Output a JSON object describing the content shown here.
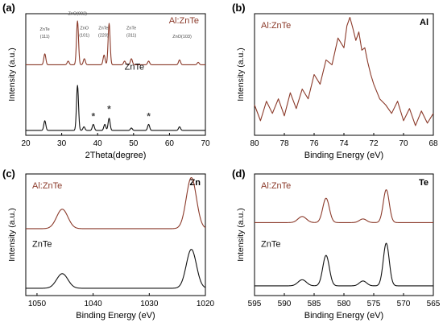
{
  "figure": {
    "background": "#ffffff",
    "series_colors": {
      "alznte": "#8b3a2a",
      "znte": "#111111"
    }
  },
  "chart_data": [
    {
      "id": "a",
      "type": "line",
      "panel_label": "(a)",
      "xlabel": "2Theta(degree)",
      "ylabel": "Intensity (a.u.)",
      "xlim": [
        20,
        70
      ],
      "xticks": [
        "20",
        "30",
        "40",
        "50",
        "60",
        "70"
      ],
      "xtick_values": [
        20,
        30,
        40,
        50,
        60,
        70
      ],
      "series_labels": [
        {
          "text": "Al:ZnTe",
          "series": "alznte"
        },
        {
          "text": "ZnTe",
          "series": "znte"
        }
      ],
      "series": [
        {
          "name": "Al:ZnTe",
          "color": "#8b3a2a",
          "baseline": 0.58,
          "peaks": [
            [
              25.3,
              0.09
            ],
            [
              31.8,
              0.03
            ],
            [
              34.4,
              0.36
            ],
            [
              36.3,
              0.05
            ],
            [
              41.8,
              0.08
            ],
            [
              43.2,
              0.34
            ],
            [
              47.5,
              0.03
            ],
            [
              49.4,
              0.05
            ],
            [
              54.2,
              0.03
            ],
            [
              62.8,
              0.04
            ],
            [
              68.0,
              0.02
            ]
          ]
        },
        {
          "name": "ZnTe",
          "color": "#111111",
          "baseline": 0.04,
          "peaks": [
            [
              25.3,
              0.08
            ],
            [
              34.4,
              0.37
            ],
            [
              36.2,
              0.03
            ],
            [
              38.8,
              0.05
            ],
            [
              42.0,
              0.05
            ],
            [
              43.2,
              0.1
            ],
            [
              49.4,
              0.02
            ],
            [
              54.2,
              0.05
            ],
            [
              62.8,
              0.03
            ]
          ]
        }
      ],
      "annotations": [
        {
          "text": "ZnTe",
          "x": 25.3,
          "y": 0.86
        },
        {
          "text": "(111)",
          "x": 25.3,
          "y": 0.8
        },
        {
          "text": "ZnO(002)",
          "x": 34.4,
          "y": 0.99
        },
        {
          "text": "ZnO",
          "x": 36.3,
          "y": 0.87
        },
        {
          "text": "(101)",
          "x": 36.3,
          "y": 0.81
        },
        {
          "text": "ZnTe",
          "x": 41.6,
          "y": 0.87
        },
        {
          "text": "(220)",
          "x": 41.6,
          "y": 0.81
        },
        {
          "text": "ZnTe",
          "x": 49.4,
          "y": 0.87
        },
        {
          "text": "(311)",
          "x": 49.4,
          "y": 0.81
        },
        {
          "text": "ZnO(103)",
          "x": 63.5,
          "y": 0.8
        },
        {
          "text": "*",
          "x": 38.8,
          "y": 0.13
        },
        {
          "text": "*",
          "x": 43.2,
          "y": 0.19
        },
        {
          "text": "*",
          "x": 54.2,
          "y": 0.13
        }
      ]
    },
    {
      "id": "b",
      "type": "line",
      "panel_label": "(b)",
      "element_label": "Al",
      "xlabel": "Binding Energy (eV)",
      "ylabel": "Intensity (a.u.)",
      "xlim": [
        80,
        68
      ],
      "xticks": [
        "80",
        "78",
        "76",
        "74",
        "72",
        "70",
        "68"
      ],
      "xtick_values": [
        80,
        78,
        76,
        74,
        72,
        70,
        68
      ],
      "series_labels": [
        {
          "text": "Al:ZnTe",
          "series": "alznte"
        }
      ],
      "series": [
        {
          "name": "Al:ZnTe",
          "color": "#8b3a2a",
          "x": [
            80.0,
            79.6,
            79.2,
            78.8,
            78.4,
            78.0,
            77.6,
            77.2,
            76.8,
            76.4,
            76.0,
            75.6,
            75.2,
            74.8,
            74.4,
            74.0,
            73.8,
            73.6,
            73.4,
            73.2,
            73.0,
            72.8,
            72.6,
            72.4,
            72.2,
            72.0,
            71.6,
            71.2,
            70.8,
            70.4,
            70.0,
            69.6,
            69.2,
            68.8,
            68.4,
            68.0
          ],
          "y": [
            0.25,
            0.12,
            0.28,
            0.18,
            0.3,
            0.16,
            0.35,
            0.22,
            0.38,
            0.3,
            0.5,
            0.42,
            0.62,
            0.58,
            0.8,
            0.72,
            0.9,
            0.97,
            0.88,
            0.78,
            0.85,
            0.7,
            0.72,
            0.6,
            0.5,
            0.42,
            0.3,
            0.25,
            0.18,
            0.28,
            0.12,
            0.22,
            0.08,
            0.2,
            0.1,
            0.18
          ]
        }
      ]
    },
    {
      "id": "c",
      "type": "line",
      "panel_label": "(c)",
      "element_label": "Zn",
      "xlabel": "Binding Energy (eV)",
      "ylabel": "Intensity (a.u.)",
      "xlim": [
        1052,
        1020
      ],
      "xticks": [
        "1050",
        "1040",
        "1030",
        "1020"
      ],
      "xtick_values": [
        1050,
        1040,
        1030,
        1020
      ],
      "series_labels": [
        {
          "text": "Al:ZnTe",
          "series": "alznte"
        },
        {
          "text": "ZnTe",
          "series": "znte"
        }
      ],
      "series": [
        {
          "name": "Al:ZnTe",
          "color": "#8b3a2a",
          "baseline": 0.55,
          "peaks": [
            [
              1045.5,
              0.16,
              1.0
            ],
            [
              1022.5,
              0.42,
              0.9
            ]
          ]
        },
        {
          "name": "ZnTe",
          "color": "#111111",
          "baseline": 0.06,
          "peaks": [
            [
              1045.5,
              0.12,
              1.0
            ],
            [
              1022.5,
              0.32,
              0.9
            ]
          ]
        }
      ]
    },
    {
      "id": "d",
      "type": "line",
      "panel_label": "(d)",
      "element_label": "Te",
      "xlabel": "Binding Energy (eV)",
      "ylabel": "Intensity (a.u.)",
      "xlim": [
        595,
        565
      ],
      "xticks": [
        "595",
        "590",
        "585",
        "580",
        "575",
        "570",
        "565"
      ],
      "xtick_values": [
        595,
        590,
        585,
        580,
        575,
        570,
        565
      ],
      "series_labels": [
        {
          "text": "Al:ZnTe",
          "series": "alznte"
        },
        {
          "text": "ZnTe",
          "series": "znte"
        }
      ],
      "series": [
        {
          "name": "Al:ZnTe",
          "color": "#8b3a2a",
          "baseline": 0.6,
          "peaks": [
            [
              587.0,
              0.05,
              0.7
            ],
            [
              583.0,
              0.2,
              0.55
            ],
            [
              576.8,
              0.03,
              0.6
            ],
            [
              572.9,
              0.27,
              0.5
            ]
          ]
        },
        {
          "name": "ZnTe",
          "color": "#111111",
          "baseline": 0.08,
          "peaks": [
            [
              587.0,
              0.05,
              0.7
            ],
            [
              583.0,
              0.25,
              0.55
            ],
            [
              576.8,
              0.04,
              0.6
            ],
            [
              572.9,
              0.35,
              0.5
            ]
          ]
        }
      ]
    }
  ]
}
